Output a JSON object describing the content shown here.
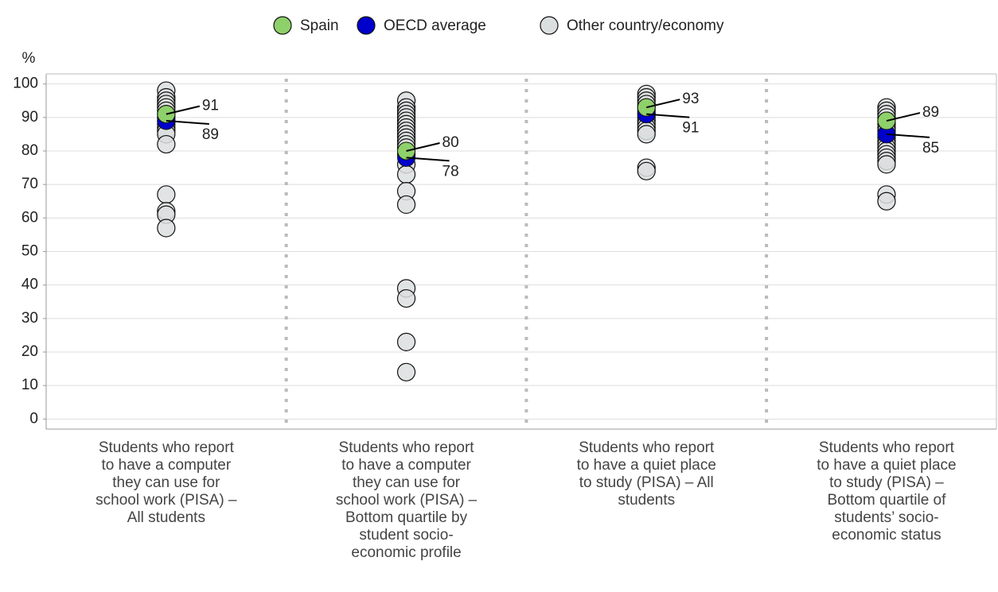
{
  "chart_data": {
    "type": "dot",
    "y_label": "%",
    "categories": [
      "Students who report to have a computer they can use for school work (PISA) – All students",
      "Students who report to have a computer they can use for school work (PISA) – Bottom quartile by student socio-economic profile",
      "Students who report to have a quiet place to study (PISA) – All students",
      "Students who report to have a quiet place to study (PISA) – Bottom quartile of students’ socio-economic status"
    ],
    "series": [
      {
        "name": "Other country/economy",
        "color": "#dcdfdf",
        "values": [
          [
            98,
            96,
            95,
            94,
            93,
            92,
            91,
            90,
            89,
            88,
            87,
            86,
            85,
            82,
            67,
            62,
            61,
            57
          ],
          [
            95,
            93,
            92,
            91,
            90,
            89,
            88,
            87,
            86,
            85,
            84,
            83,
            82,
            81,
            79,
            76,
            73,
            68,
            64,
            39,
            36,
            23,
            14
          ],
          [
            97,
            96,
            95,
            94,
            93,
            92,
            91,
            90,
            89,
            88,
            87,
            86,
            85,
            75,
            74
          ],
          [
            93,
            92,
            91,
            90,
            89,
            88,
            87,
            86,
            85,
            84,
            83,
            82,
            81,
            80,
            79,
            78,
            77,
            76,
            67,
            65
          ]
        ]
      },
      {
        "name": "OECD average",
        "color": "#0000cc",
        "values": [
          89,
          78,
          91,
          85
        ]
      },
      {
        "name": "Spain",
        "color": "#8ed06a",
        "values": [
          91,
          80,
          93,
          89
        ]
      }
    ],
    "ylim": [
      -3,
      103
    ],
    "yticks": [
      0,
      10,
      20,
      30,
      40,
      50,
      60,
      70,
      80,
      90,
      100
    ],
    "grid": true
  }
}
